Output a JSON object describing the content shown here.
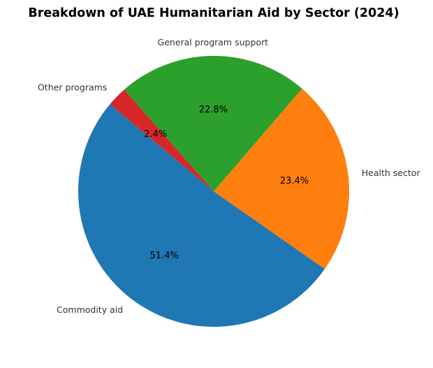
{
  "chart_data": {
    "type": "pie",
    "title": "Breakdown of UAE Humanitarian Aid by Sector (2024)",
    "categories": [
      "Commodity aid",
      "Health sector",
      "General program support",
      "Other programs"
    ],
    "values": [
      51.4,
      23.4,
      22.8,
      2.4
    ],
    "value_labels": [
      "51.4%",
      "23.4%",
      "22.8%",
      "2.4%"
    ],
    "colors": [
      "#1f77b4",
      "#ff7f0e",
      "#2ca02c",
      "#d62728"
    ],
    "start_angle_deg": 140,
    "legend": "none"
  }
}
